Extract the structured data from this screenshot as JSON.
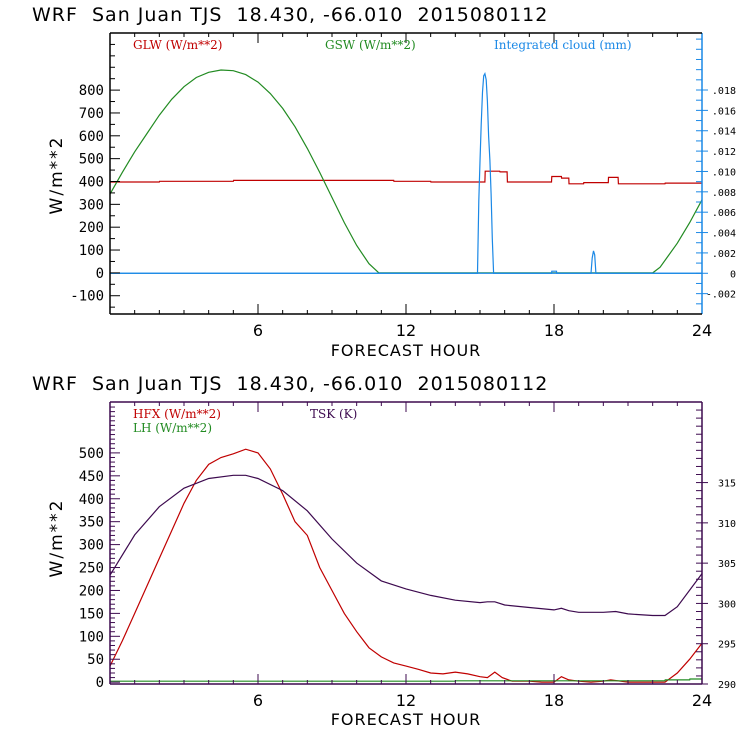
{
  "chart_data": [
    {
      "type": "line",
      "title": "WRF  San Juan TJS  18.430, -66.010  2015080112",
      "xlabel": "FORECAST HOUR",
      "ylabel": "W/m**2",
      "xlim": [
        0,
        24
      ],
      "ylim": [
        -180,
        1050
      ],
      "y2lim": [
        -0.004,
        0.0236
      ],
      "x_ticks": [
        "6",
        "12",
        "18",
        "24"
      ],
      "y_ticks": [
        "-100",
        "0",
        "100",
        "200",
        "300",
        "400",
        "500",
        "600",
        "700",
        "800"
      ],
      "y2_ticks": [
        "-.002",
        "0",
        ".002",
        ".004",
        ".006",
        ".008",
        ".010",
        ".012",
        ".014",
        ".016",
        ".018"
      ],
      "grid": false,
      "legend_position": "top",
      "colors": {
        "axis_left": "#000000",
        "axis_right": "#1a88e6"
      },
      "series": [
        {
          "name": "GLW (W/m**2)",
          "color": "#c00000",
          "axis": "left",
          "x": [
            0,
            2,
            2.01,
            5,
            5.01,
            11.5,
            11.51,
            13,
            13.01,
            15.2,
            15.21,
            15.8,
            15.81,
            16.1,
            16.11,
            17.9,
            17.91,
            18.3,
            18.31,
            18.6,
            18.61,
            19.2,
            19.21,
            20.2,
            20.21,
            20.6,
            20.61,
            21.1,
            21.11,
            22.5,
            22.51,
            24
          ],
          "y": [
            398,
            398,
            401,
            401,
            405,
            405,
            401,
            401,
            398,
            398,
            445,
            445,
            442,
            442,
            398,
            398,
            422,
            422,
            415,
            415,
            390,
            390,
            395,
            395,
            418,
            418,
            390,
            390,
            390,
            390,
            393,
            393
          ]
        },
        {
          "name": "GSW (W/m**2)",
          "color": "#228b22",
          "axis": "left",
          "x": [
            0,
            0.5,
            1,
            1.5,
            2,
            2.5,
            3,
            3.5,
            4,
            4.5,
            5,
            5.5,
            6,
            6.5,
            7,
            7.5,
            8,
            8.5,
            9,
            9.5,
            10,
            10.5,
            10.9,
            11,
            22,
            22.3,
            22.6,
            23,
            23.5,
            24
          ],
          "y": [
            345,
            440,
            530,
            610,
            690,
            760,
            815,
            855,
            878,
            888,
            885,
            868,
            835,
            785,
            720,
            640,
            545,
            440,
            330,
            220,
            120,
            40,
            0,
            0,
            0,
            25,
            70,
            130,
            220,
            320
          ]
        },
        {
          "name": "Integrated cloud (mm)",
          "color": "#1a88e6",
          "axis": "right",
          "x": [
            0,
            14.9,
            14.95,
            15.0,
            15.05,
            15.1,
            15.15,
            15.2,
            15.25,
            15.3,
            15.35,
            15.4,
            15.45,
            15.5,
            15.55,
            15.6,
            15.65,
            15.7,
            16.0,
            17.9,
            17.91,
            18.1,
            18.11,
            19.5,
            19.55,
            19.6,
            19.65,
            19.7,
            19.75,
            24
          ],
          "y": [
            0,
            0,
            0.0071,
            0.011,
            0.0146,
            0.0178,
            0.0194,
            0.0196,
            0.019,
            0.0169,
            0.0135,
            0.0111,
            0.0078,
            0.0034,
            0.0,
            0,
            0,
            0,
            0,
            0,
            0.0002,
            0.0002,
            0,
            0,
            0.0015,
            0.0022,
            0.0018,
            0.0,
            0,
            0
          ]
        }
      ]
    },
    {
      "type": "line",
      "title": "WRF  San Juan TJS  18.430, -66.010  2015080112",
      "xlabel": "FORECAST HOUR",
      "ylabel": "W/m**2",
      "xlim": [
        0,
        24
      ],
      "ylim": [
        -4,
        611
      ],
      "y2lim": [
        290,
        325
      ],
      "x_ticks": [
        "6",
        "12",
        "18",
        "24"
      ],
      "y_ticks": [
        "0",
        "50",
        "100",
        "150",
        "200",
        "250",
        "300",
        "350",
        "400",
        "450",
        "500"
      ],
      "y2_ticks": [
        "290",
        "295",
        "300",
        "305",
        "310",
        "315"
      ],
      "grid": false,
      "legend_position": "top-left",
      "colors": {
        "axis": "#3d0a4f"
      },
      "series": [
        {
          "name": "HFX (W/m**2)",
          "color": "#c00000",
          "axis": "left",
          "x": [
            0,
            0.5,
            1,
            1.5,
            2,
            2.5,
            3,
            3.5,
            4,
            4.5,
            5,
            5.5,
            6,
            6.5,
            7,
            7.5,
            8,
            8.5,
            9,
            9.5,
            10,
            10.5,
            11,
            11.5,
            12,
            12.5,
            13,
            13.5,
            14,
            14.5,
            15,
            15.3,
            15.6,
            15.9,
            16.3,
            17,
            17.5,
            18,
            18.3,
            18.6,
            19,
            19.5,
            20,
            20.3,
            20.7,
            21,
            22,
            22.5,
            23,
            23.5,
            24
          ],
          "y": [
            35,
            90,
            150,
            210,
            270,
            330,
            390,
            440,
            475,
            490,
            498,
            508,
            500,
            465,
            410,
            350,
            320,
            250,
            200,
            150,
            110,
            75,
            55,
            42,
            35,
            28,
            20,
            18,
            22,
            18,
            12,
            10,
            22,
            10,
            2,
            2,
            0,
            0,
            12,
            5,
            2,
            0,
            2,
            5,
            2,
            0,
            0,
            0,
            20,
            50,
            85
          ]
        },
        {
          "name": "LH (W/m**2)",
          "color": "#228b22",
          "axis": "left",
          "x": [
            0,
            14,
            14.01,
            22.5,
            22.51,
            23.5,
            23.51,
            24
          ],
          "y": [
            2,
            2,
            3,
            3,
            5,
            5,
            7,
            7
          ]
        },
        {
          "name": "TSK (K)",
          "color": "#3d0a4f",
          "axis": "right",
          "x": [
            0,
            1,
            2,
            3,
            4,
            5,
            5.5,
            6,
            7,
            8,
            9,
            10,
            11,
            12,
            13,
            14,
            15,
            15.3,
            15.6,
            16,
            17,
            18,
            18.3,
            18.6,
            19,
            20,
            20.5,
            21,
            22,
            22.5,
            23,
            24
          ],
          "y": [
            303.5,
            308.5,
            312.0,
            314.3,
            315.5,
            315.9,
            315.9,
            315.5,
            314.0,
            311.5,
            308.0,
            305.0,
            302.8,
            301.8,
            301.0,
            300.4,
            300.1,
            300.2,
            300.2,
            299.8,
            299.5,
            299.2,
            299.4,
            299.1,
            298.9,
            298.9,
            299.0,
            298.7,
            298.5,
            298.5,
            299.6,
            303.7
          ]
        }
      ]
    }
  ]
}
